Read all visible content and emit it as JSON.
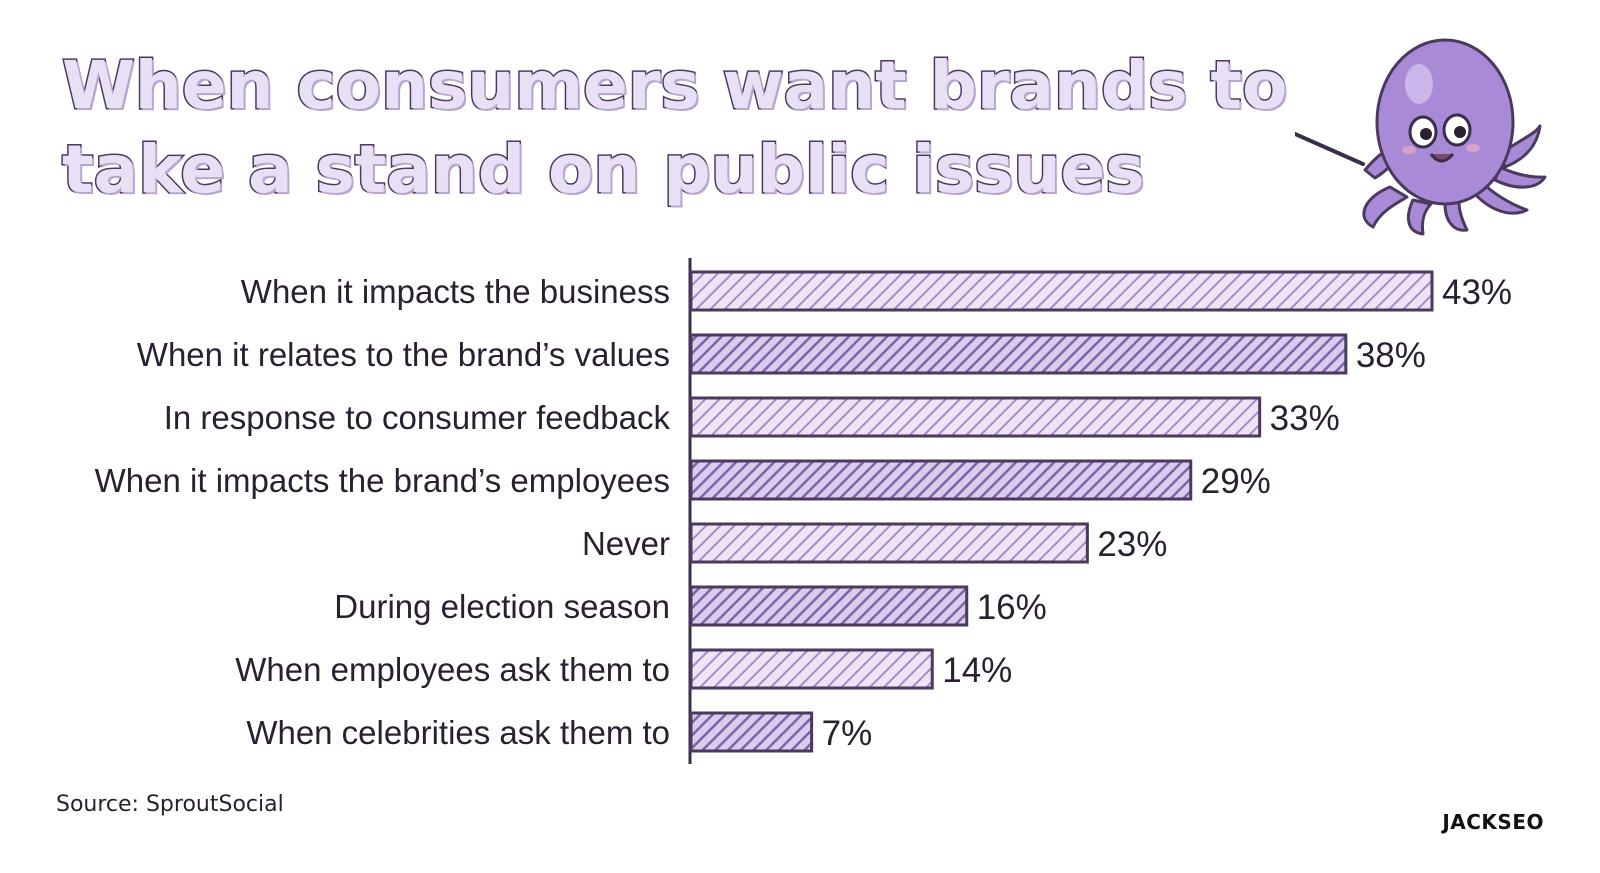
{
  "title": {
    "line1": "When consumers want brands to",
    "line2": "take a stand on public issues"
  },
  "source": "Source: SproutSocial",
  "brand": "JACKSEO",
  "colors": {
    "bar_fill": "#e7ddf3",
    "bar_hatch_light": "#a58bc8",
    "bar_hatch_dark": "#7f63a8",
    "bar_stroke": "#4a3a5e",
    "title_fill": "#e9e0f5",
    "mascot": "#a88ad6"
  },
  "chart_data": {
    "type": "bar",
    "orientation": "horizontal",
    "categories": [
      "When it impacts the business",
      "When it relates to the brand’s values",
      "In response to consumer feedback",
      "When it impacts the brand’s employees",
      "Never",
      "During election season",
      "When employees ask them to",
      "When celebrities ask them to"
    ],
    "values": [
      43,
      38,
      33,
      29,
      23,
      16,
      14,
      7
    ],
    "value_labels": [
      "43%",
      "38%",
      "33%",
      "29%",
      "23%",
      "16%",
      "14%",
      "7%"
    ],
    "xlim": [
      0,
      43
    ],
    "unit": "%",
    "grid": false,
    "legend": "none"
  }
}
